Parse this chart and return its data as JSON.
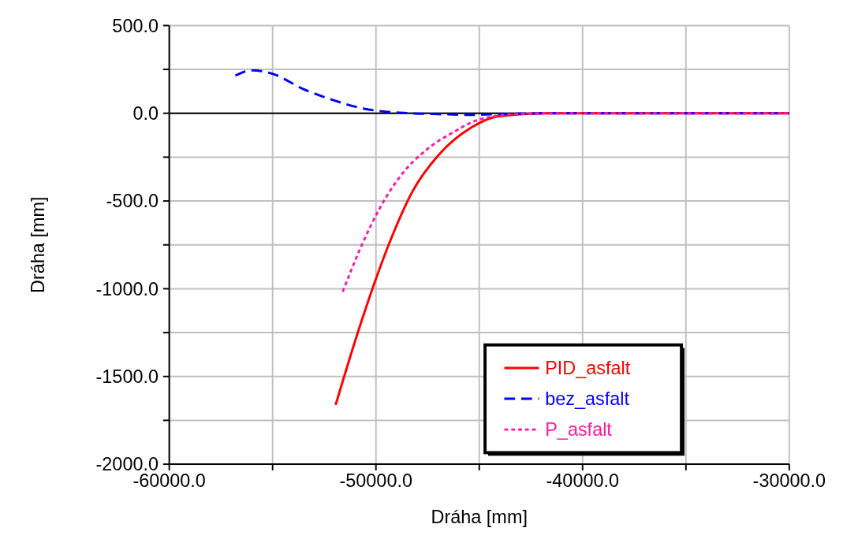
{
  "chart_data": {
    "type": "line",
    "xlabel": "Dráha [mm]",
    "ylabel": "Dráha [mm]",
    "xlim": [
      -60000,
      -30000
    ],
    "xticks": [
      {
        "value": -60000,
        "label": "-60000.0"
      },
      {
        "value": -55000,
        "label": null
      },
      {
        "value": -50000,
        "label": "-50000.0"
      },
      {
        "value": -45000,
        "label": null
      },
      {
        "value": -40000,
        "label": "-40000.0"
      },
      {
        "value": -35000,
        "label": null
      },
      {
        "value": -30000,
        "label": "-30000.0"
      }
    ],
    "ylim": [
      -2000,
      500
    ],
    "yticks": [
      {
        "value": -2000,
        "label": "-2000.0"
      },
      {
        "value": -1750,
        "label": null
      },
      {
        "value": -1500,
        "label": "-1500.0"
      },
      {
        "value": -1250,
        "label": null
      },
      {
        "value": -1000,
        "label": "-1000.0"
      },
      {
        "value": -750,
        "label": null
      },
      {
        "value": -500,
        "label": "-500.0"
      },
      {
        "value": -250,
        "label": null
      },
      {
        "value": 0,
        "label": "0.0"
      },
      {
        "value": 250,
        "label": null
      },
      {
        "value": 500,
        "label": "500.0"
      }
    ],
    "grid": true,
    "legend": "bottom right",
    "ref_lines": [
      {
        "axis": "y",
        "value": 0,
        "color": "#000000"
      }
    ],
    "series": [
      {
        "name": "PID_asfalt",
        "color": "#ff0000",
        "line_style": "solid",
        "x": [
          -51950,
          -50940,
          -50130,
          -49190,
          -48220,
          -46960,
          -45350,
          -44120,
          -41620,
          -30000
        ],
        "values": [
          -1662,
          -1273,
          -987,
          -693,
          -443,
          -237,
          -79,
          -18,
          0,
          0
        ]
      },
      {
        "name": "bez_asfalt",
        "color": "#0000ff",
        "line_style": "dashed",
        "x": [
          -56800,
          -56000,
          -55000,
          -53550,
          -52060,
          -50570,
          -49830,
          -48330,
          -47200,
          -45350,
          -43860,
          -41600,
          -30000
        ],
        "values": [
          215,
          245,
          225,
          140,
          75,
          26,
          13,
          0,
          -4,
          -9,
          -4,
          0,
          0
        ]
      },
      {
        "name": "P_asfalt",
        "color": "#ff1aa6",
        "line_style": "dotted",
        "x": [
          -51610,
          -50680,
          -49830,
          -48710,
          -47590,
          -46210,
          -45090,
          -43120,
          -41600,
          -30000
        ],
        "values": [
          -1017,
          -750,
          -544,
          -342,
          -211,
          -105,
          -39,
          -4,
          0,
          0
        ]
      }
    ]
  }
}
